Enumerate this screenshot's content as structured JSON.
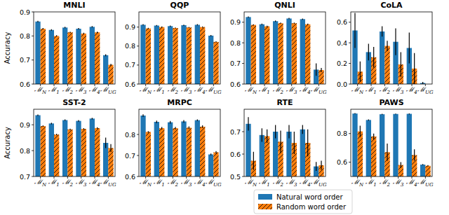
{
  "chart_data": [
    {
      "type": "bar",
      "title": "MNLI",
      "ylabel": "Accuracy",
      "categories": [
        "ℳN",
        "ℳ1",
        "ℳ2",
        "ℳ3",
        "ℳ4",
        "ℳUG"
      ],
      "ylim": [
        0.6,
        0.9
      ],
      "yticks": [
        0.6,
        0.7,
        0.8,
        0.9
      ],
      "series": [
        {
          "name": "Natural word order",
          "color": "#1f77b4",
          "values": [
            0.86,
            0.825,
            0.835,
            0.83,
            0.838,
            0.72
          ],
          "errors": [
            0.003,
            0.003,
            0.003,
            0.003,
            0.003,
            0.004
          ]
        },
        {
          "name": "Random word order",
          "color": "#ff7f0e",
          "values": [
            0.83,
            0.8,
            0.815,
            0.81,
            0.815,
            0.68
          ],
          "errors": [
            0.003,
            0.003,
            0.003,
            0.003,
            0.003,
            0.004
          ]
        }
      ]
    },
    {
      "type": "bar",
      "title": "QQP",
      "categories": [
        "ℳN",
        "ℳ1",
        "ℳ2",
        "ℳ3",
        "ℳ4",
        "ℳUG"
      ],
      "ylim": [
        0.6,
        0.98
      ],
      "yticks": [
        0.6,
        0.7,
        0.8,
        0.9
      ],
      "series": [
        {
          "name": "Natural word order",
          "color": "#1f77b4",
          "values": [
            0.912,
            0.908,
            0.905,
            0.91,
            0.912,
            0.855
          ],
          "errors": [
            0.003,
            0.003,
            0.003,
            0.003,
            0.003,
            0.003
          ]
        },
        {
          "name": "Random word order",
          "color": "#ff7f0e",
          "values": [
            0.893,
            0.9,
            0.895,
            0.898,
            0.9,
            0.822
          ],
          "errors": [
            0.003,
            0.003,
            0.003,
            0.003,
            0.003,
            0.003
          ]
        }
      ]
    },
    {
      "type": "bar",
      "title": "QNLI",
      "categories": [
        "ℳN",
        "ℳ1",
        "ℳ2",
        "ℳ3",
        "ℳ4",
        "ℳUG"
      ],
      "ylim": [
        0.6,
        0.95
      ],
      "yticks": [
        0.6,
        0.7,
        0.8,
        0.9
      ],
      "series": [
        {
          "name": "Natural word order",
          "color": "#1f77b4",
          "values": [
            0.925,
            0.89,
            0.905,
            0.918,
            0.915,
            0.67
          ],
          "errors": [
            0.003,
            0.003,
            0.003,
            0.003,
            0.003,
            0.03
          ]
        },
        {
          "name": "Random word order",
          "color": "#ff7f0e",
          "values": [
            0.887,
            0.88,
            0.895,
            0.895,
            0.89,
            0.668
          ],
          "errors": [
            0.003,
            0.003,
            0.003,
            0.003,
            0.003,
            0.01
          ]
        }
      ]
    },
    {
      "type": "bar",
      "title": "CoLA",
      "categories": [
        "ℳN",
        "ℳ1",
        "ℳ2",
        "ℳ3",
        "ℳ4",
        "ℳUG"
      ],
      "ylim": [
        0.0,
        0.7
      ],
      "yticks": [
        {
          "value": 0,
          "label": "0.0"
        },
        0.2,
        0.4,
        0.6
      ],
      "series": [
        {
          "name": "Natural word order",
          "color": "#1f77b4",
          "values": [
            0.52,
            0.31,
            0.51,
            0.41,
            0.35,
            0.01
          ],
          "errors": [
            0.17,
            0.08,
            0.05,
            0.13,
            0.15,
            0.01
          ]
        },
        {
          "name": "Random word order",
          "color": "#ff7f0e",
          "values": [
            0.12,
            0.26,
            0.37,
            0.19,
            0.15,
            0.0
          ],
          "errors": [
            0.1,
            0.1,
            0.05,
            0.12,
            0.15,
            0.0
          ]
        }
      ]
    },
    {
      "type": "bar",
      "title": "SST-2",
      "ylabel": "Accuracy",
      "categories": [
        "ℳN",
        "ℳ1",
        "ℳ2",
        "ℳ3",
        "ℳ4",
        "ℳUG"
      ],
      "ylim": [
        0.7,
        0.96
      ],
      "yticks": [
        0.7,
        0.8,
        0.9
      ],
      "series": [
        {
          "name": "Natural word order",
          "color": "#1f77b4",
          "values": [
            0.937,
            0.905,
            0.918,
            0.915,
            0.924,
            0.83
          ],
          "errors": [
            0.003,
            0.003,
            0.003,
            0.003,
            0.003,
            0.02
          ]
        },
        {
          "name": "Random word order",
          "color": "#ff7f0e",
          "values": [
            0.895,
            0.862,
            0.882,
            0.884,
            0.887,
            0.81
          ],
          "errors": [
            0.003,
            0.003,
            0.003,
            0.003,
            0.003,
            0.015
          ]
        }
      ]
    },
    {
      "type": "bar",
      "title": "MRPC",
      "categories": [
        "ℳN",
        "ℳ1",
        "ℳ2",
        "ℳ3",
        "ℳ4",
        "ℳUG"
      ],
      "ylim": [
        0.6,
        0.92
      ],
      "yticks": [
        0.6,
        0.7,
        0.8
      ],
      "series": [
        {
          "name": "Natural word order",
          "color": "#1f77b4",
          "values": [
            0.89,
            0.86,
            0.858,
            0.862,
            0.868,
            0.705
          ],
          "errors": [
            0.006,
            0.006,
            0.006,
            0.006,
            0.004,
            0.004
          ]
        },
        {
          "name": "Random word order",
          "color": "#ff7f0e",
          "values": [
            0.812,
            0.83,
            0.83,
            0.832,
            0.837,
            0.715
          ],
          "errors": [
            0.004,
            0.006,
            0.006,
            0.006,
            0.006,
            0.006
          ]
        }
      ]
    },
    {
      "type": "bar",
      "title": "RTE",
      "categories": [
        "ℳN",
        "ℳ1",
        "ℳ2",
        "ℳ3",
        "ℳ4",
        "ℳUG"
      ],
      "ylim": [
        0.5,
        0.8
      ],
      "yticks": [
        0.5,
        0.6,
        0.7
      ],
      "series": [
        {
          "name": "Natural word order",
          "color": "#1f77b4",
          "values": [
            0.735,
            0.685,
            0.7,
            0.7,
            0.71,
            0.545
          ],
          "errors": [
            0.03,
            0.03,
            0.03,
            0.03,
            0.02,
            0.02
          ]
        },
        {
          "name": "Random word order",
          "color": "#ff7f0e",
          "values": [
            0.57,
            0.68,
            0.655,
            0.65,
            0.65,
            0.55
          ],
          "errors": [
            0.04,
            0.03,
            0.05,
            0.05,
            0.06,
            0.02
          ]
        }
      ]
    },
    {
      "type": "bar",
      "title": "PAWS",
      "categories": [
        "ℳN",
        "ℳ1",
        "ℳ2",
        "ℳ3",
        "ℳ4",
        "ℳUG"
      ],
      "ylim": [
        0.5,
        0.97
      ],
      "yticks": [
        0.6,
        0.8
      ],
      "legend": "lower center",
      "series": [
        {
          "name": "Natural word order",
          "color": "#1f77b4",
          "values": [
            0.94,
            0.895,
            0.935,
            0.937,
            0.938,
            0.583
          ],
          "errors": [
            0.003,
            0.004,
            0.003,
            0.003,
            0.003,
            0.004
          ]
        },
        {
          "name": "Random word order",
          "color": "#ff7f0e",
          "values": [
            0.815,
            0.78,
            0.67,
            0.58,
            0.65,
            0.575
          ],
          "errors": [
            0.04,
            0.02,
            0.06,
            0.02,
            0.04,
            0.005
          ]
        }
      ]
    }
  ]
}
